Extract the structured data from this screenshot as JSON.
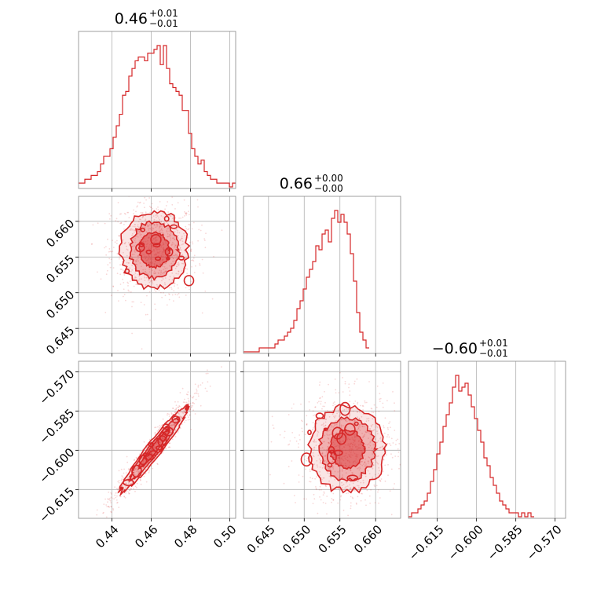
{
  "chart_data": {
    "type": "corner",
    "color": "#d62728",
    "grid": true,
    "parameters": [
      {
        "title_value": "0.46",
        "title_plus": "+0.01",
        "title_minus": "−0.01",
        "range": [
          0.423,
          0.503
        ],
        "ticks": [
          0.44,
          0.46,
          0.48,
          0.5
        ],
        "tick_labels": [
          "0.44",
          "0.46",
          "0.48",
          "0.50"
        ],
        "hist": {
          "edges_start": 0.423,
          "edges_step": 0.0016,
          "counts": [
            1,
            1,
            2,
            2,
            3,
            3,
            4,
            6,
            8,
            8,
            10,
            13,
            16,
            19,
            24,
            25,
            29,
            31,
            33,
            34,
            34,
            33,
            35,
            35,
            36,
            37,
            32,
            37,
            31,
            27,
            26,
            25,
            24,
            20,
            20,
            14,
            10,
            8,
            6,
            7,
            4,
            3,
            2,
            2,
            1,
            1,
            1,
            1,
            0,
            1
          ]
        }
      },
      {
        "title_value": "0.66",
        "title_plus": "+0.00",
        "title_minus": "−0.00",
        "range": [
          0.6415,
          0.6635
        ],
        "ticks": [
          0.645,
          0.65,
          0.655,
          0.66
        ],
        "tick_labels": [
          "0.645",
          "0.650",
          "0.655",
          "0.660"
        ],
        "hist": {
          "edges_start": 0.6415,
          "edges_step": 0.00044,
          "counts": [
            0,
            0,
            0,
            0,
            0,
            1,
            1,
            1,
            1,
            1,
            2,
            3,
            3,
            4,
            5,
            6,
            8,
            11,
            13,
            16,
            19,
            21,
            23,
            27,
            26,
            30,
            31,
            28,
            34,
            36,
            33,
            35,
            33,
            30,
            25,
            18,
            10,
            5,
            3,
            1
          ]
        }
      },
      {
        "title_value": "−0.60",
        "title_plus": "+0.01",
        "title_minus": "−0.01",
        "range": [
          -0.626,
          -0.566
        ],
        "ticks": [
          -0.615,
          -0.6,
          -0.585,
          -0.57
        ],
        "tick_labels": [
          "−0.615",
          "−0.600",
          "−0.585",
          "−0.570"
        ],
        "hist": {
          "edges_start": -0.626,
          "edges_step": 0.0012,
          "counts": [
            0,
            1,
            1,
            2,
            3,
            4,
            6,
            9,
            12,
            16,
            19,
            23,
            26,
            29,
            33,
            36,
            32,
            33,
            34,
            31,
            28,
            25,
            22,
            19,
            15,
            13,
            10,
            8,
            6,
            4,
            3,
            2,
            1,
            1,
            1,
            0,
            1,
            0,
            1,
            0
          ]
        }
      }
    ],
    "correlations": [
      {
        "row": 1,
        "col": 0,
        "rho": 0.0
      },
      {
        "row": 2,
        "col": 0,
        "rho": 0.96
      },
      {
        "row": 2,
        "col": 1,
        "rho": 0.0
      }
    ]
  }
}
